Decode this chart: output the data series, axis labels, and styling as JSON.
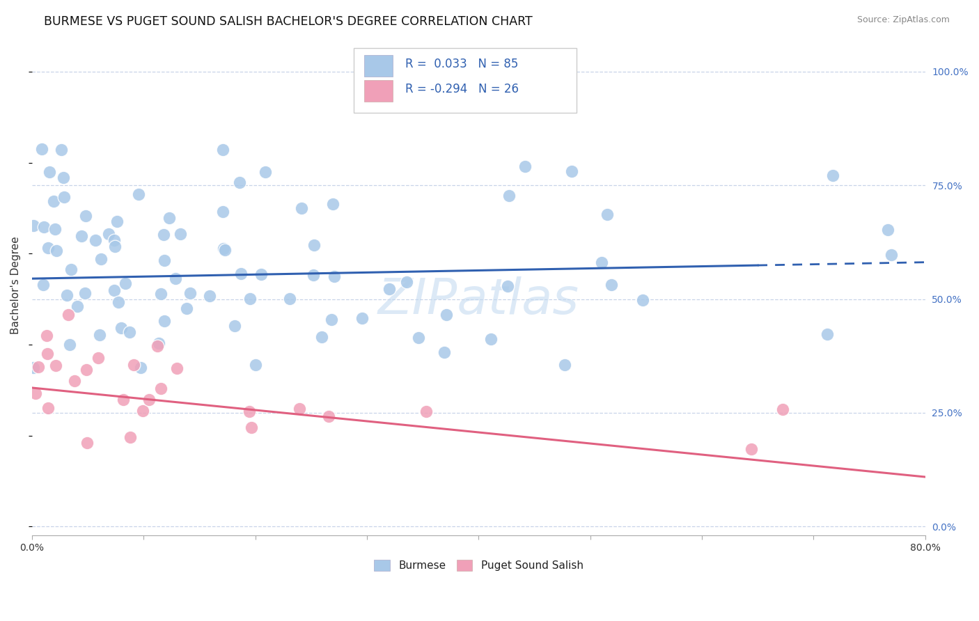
{
  "title": "BURMESE VS PUGET SOUND SALISH BACHELOR'S DEGREE CORRELATION CHART",
  "source": "Source: ZipAtlas.com",
  "ylabel": "Bachelor's Degree",
  "xlim": [
    0.0,
    0.8
  ],
  "ylim": [
    -0.02,
    1.08
  ],
  "yticks_right": [
    0.0,
    0.25,
    0.5,
    0.75,
    1.0
  ],
  "yticklabels_right": [
    "0.0%",
    "25.0%",
    "50.0%",
    "75.0%",
    "100.0%"
  ],
  "burmese_color": "#a8c8e8",
  "puget_color": "#f0a0b8",
  "burmese_line_color": "#3060b0",
  "puget_line_color": "#e06080",
  "R_burmese": 0.033,
  "N_burmese": 85,
  "R_puget": -0.294,
  "N_puget": 26,
  "watermark": "ZIPatlas",
  "background_color": "#ffffff",
  "grid_color": "#c8d4e8",
  "burmese_line_solid_end": 0.65,
  "puget_line_solid_end": 0.8,
  "burmese_intercept": 0.545,
  "burmese_slope": 0.045,
  "puget_intercept": 0.305,
  "puget_slope": -0.245
}
